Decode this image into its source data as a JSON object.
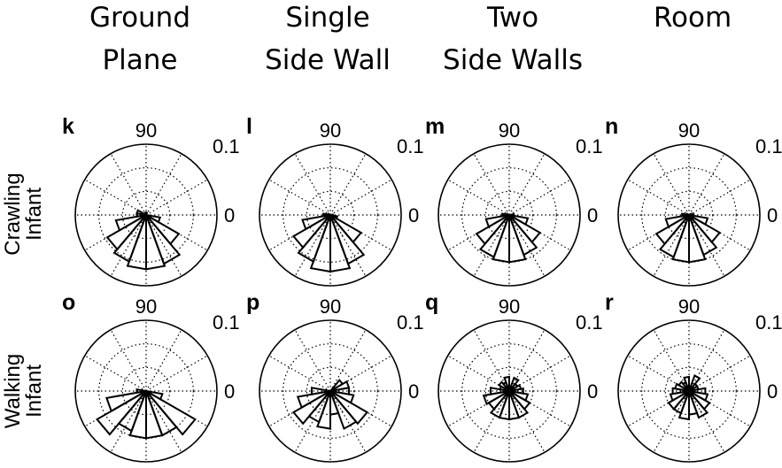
{
  "columns": [
    {
      "line1": "Ground",
      "line2": "Plane"
    },
    {
      "line1": "Single",
      "line2": "Side Wall"
    },
    {
      "line1": "Two",
      "line2": "Side Walls"
    },
    {
      "line1": "Room",
      "line2": ""
    }
  ],
  "rows": [
    {
      "line1": "Crawling",
      "line2": "Infant"
    },
    {
      "line1": "Walking",
      "line2": "Infant"
    }
  ],
  "chart_data": {
    "type": "polar-histogram",
    "bin_width_deg": 20,
    "rmax": 0.15,
    "angle_tick_label": "90",
    "radial_tick_label": "0.1",
    "zero_angle_label": "0",
    "grid": true,
    "bin_centers_deg": [
      0,
      20,
      40,
      60,
      80,
      100,
      120,
      140,
      160,
      180,
      200,
      220,
      240,
      260,
      280,
      300,
      320,
      340
    ],
    "panels": [
      {
        "letter": "k",
        "row": 0,
        "col": 0,
        "values": [
          0.0,
          0.0,
          0.0,
          0.0,
          0.005,
          0.005,
          0.0,
          0.0,
          0.02,
          0.02,
          0.065,
          0.095,
          0.105,
          0.115,
          0.115,
          0.11,
          0.08,
          0.03
        ]
      },
      {
        "letter": "l",
        "row": 0,
        "col": 1,
        "values": [
          0.005,
          0.0,
          0.0,
          0.0,
          0.0,
          0.0,
          0.0,
          0.0,
          0.005,
          0.015,
          0.06,
          0.09,
          0.105,
          0.12,
          0.12,
          0.11,
          0.075,
          0.015
        ]
      },
      {
        "letter": "m",
        "row": 0,
        "col": 2,
        "values": [
          0.01,
          0.0,
          0.0,
          0.0,
          0.0,
          0.0,
          0.0,
          0.0,
          0.005,
          0.015,
          0.05,
          0.08,
          0.095,
          0.1,
          0.1,
          0.09,
          0.075,
          0.04
        ]
      },
      {
        "letter": "n",
        "row": 0,
        "col": 3,
        "values": [
          0.01,
          0.005,
          0.0,
          0.0,
          0.0,
          0.0,
          0.0,
          0.0,
          0.005,
          0.015,
          0.05,
          0.08,
          0.095,
          0.1,
          0.1,
          0.09,
          0.075,
          0.04
        ]
      },
      {
        "letter": "o",
        "row": 1,
        "col": 0,
        "values": [
          0.0,
          0.0,
          0.0,
          0.0,
          0.0,
          0.0,
          0.0,
          0.0,
          0.0,
          0.02,
          0.085,
          0.12,
          0.09,
          0.1,
          0.1,
          0.1,
          0.12,
          0.035
        ]
      },
      {
        "letter": "p",
        "row": 1,
        "col": 1,
        "values": [
          0.04,
          0.04,
          0.03,
          0.0,
          0.0,
          0.0,
          0.0,
          0.0,
          0.0,
          0.04,
          0.07,
          0.09,
          0.07,
          0.08,
          0.05,
          0.085,
          0.09,
          0.05
        ]
      },
      {
        "letter": "q",
        "row": 1,
        "col": 2,
        "values": [
          0.03,
          0.025,
          0.02,
          0.03,
          0.01,
          0.03,
          0.02,
          0.025,
          0.02,
          0.04,
          0.055,
          0.05,
          0.06,
          0.06,
          0.06,
          0.06,
          0.05,
          0.04
        ]
      },
      {
        "letter": "r",
        "row": 1,
        "col": 3,
        "values": [
          0.035,
          0.02,
          0.02,
          0.035,
          0.01,
          0.03,
          0.02,
          0.025,
          0.03,
          0.035,
          0.04,
          0.05,
          0.05,
          0.06,
          0.05,
          0.06,
          0.05,
          0.04
        ]
      }
    ]
  }
}
